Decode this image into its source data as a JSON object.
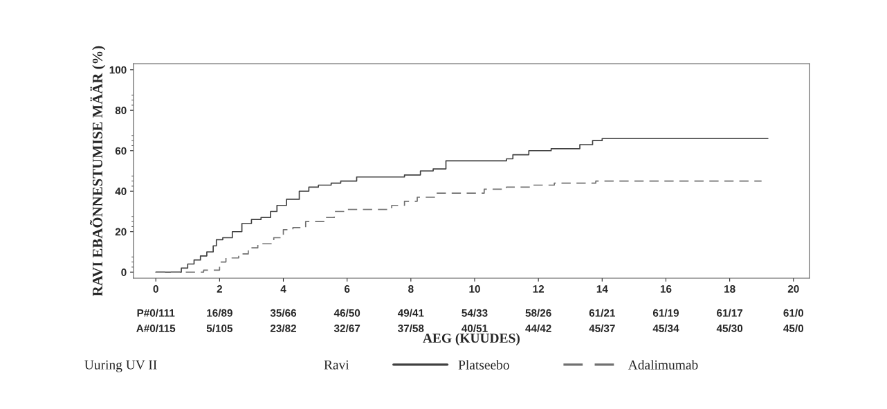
{
  "chart_data": {
    "type": "step",
    "xlabel": "AEG (KUUDES)",
    "ylabel": "RAVI EBAÕNNESTUMISE MÄÄR (%)",
    "legend_title": "Ravi",
    "legend": "bottom",
    "grid": false,
    "xlim": [
      -0.7,
      20.5
    ],
    "ylim": [
      -3,
      103
    ],
    "xticks": [
      0,
      2,
      4,
      6,
      8,
      10,
      12,
      14,
      16,
      18,
      20
    ],
    "yticks": [
      0,
      20,
      40,
      60,
      80,
      100
    ],
    "series": [
      {
        "name": "Platseebo",
        "color": "#404040",
        "line_style": "solid",
        "x": [
          0,
          0.6,
          0.8,
          1.0,
          1.2,
          1.4,
          1.6,
          1.8,
          1.9,
          2.1,
          2.4,
          2.7,
          3.0,
          3.3,
          3.6,
          3.8,
          4.1,
          4.5,
          4.8,
          5.1,
          5.5,
          5.8,
          6.3,
          7.8,
          8.3,
          8.7,
          9.1,
          11.0,
          11.2,
          11.7,
          12.4,
          13.3,
          13.7,
          14.0,
          19.2
        ],
        "values": [
          0,
          0,
          2,
          4,
          6,
          8,
          10,
          13,
          16,
          17,
          20,
          24,
          26,
          27,
          30,
          33,
          36,
          40,
          42,
          43,
          44,
          45,
          47,
          48,
          50,
          51,
          55,
          56,
          58,
          60,
          61,
          63,
          65,
          66,
          66
        ]
      },
      {
        "name": "Adalimumab",
        "color": "#707070",
        "line_style": "dashed",
        "x": [
          0,
          1.0,
          1.5,
          2.0,
          2.2,
          2.6,
          2.9,
          3.2,
          3.7,
          4.0,
          4.3,
          4.7,
          5.3,
          5.6,
          6.0,
          7.4,
          7.8,
          8.2,
          8.8,
          10.3,
          11.0,
          11.8,
          12.5,
          13.8,
          19.0
        ],
        "values": [
          0,
          0,
          1,
          5,
          7,
          9,
          12,
          14,
          17,
          21,
          22,
          25,
          27,
          30,
          31,
          33,
          35,
          37,
          39,
          41,
          42,
          43,
          44,
          45,
          45
        ]
      }
    ],
    "annotations": [
      "Uuring UV II",
      "P#0/111",
      "16/89",
      "35/66",
      "46/50",
      "49/41",
      "54/33",
      "58/26",
      "61/21",
      "61/19",
      "61/17",
      "61/0",
      "A#0/115",
      "5/105",
      "23/82",
      "32/67",
      "37/58",
      "40/51",
      "44/42",
      "45/37",
      "45/34",
      "45/30",
      "45/0"
    ]
  }
}
